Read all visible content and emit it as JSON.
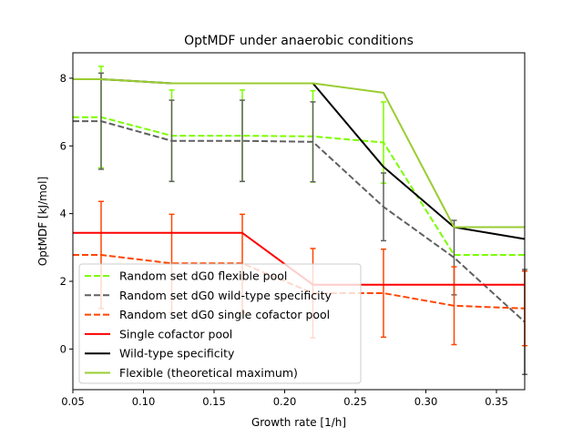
{
  "chart_data": {
    "type": "line",
    "title": "OptMDF under anaerobic conditions",
    "xlabel": "Growth rate [1/h]",
    "ylabel": "OptMDF [kJ/mol]",
    "xlim": [
      0.05,
      0.37
    ],
    "ylim": [
      -1.2,
      8.75
    ],
    "xticks": [
      0.05,
      0.1,
      0.15,
      0.2,
      0.25,
      0.3,
      0.35
    ],
    "xtick_labels": [
      "0.05",
      "0.10",
      "0.15",
      "0.20",
      "0.25",
      "0.30",
      "0.35"
    ],
    "yticks": [
      0,
      2,
      4,
      6,
      8
    ],
    "ytick_labels": [
      "0",
      "2",
      "4",
      "6",
      "8"
    ],
    "grid": false,
    "legend_position": "lower-left",
    "series": [
      {
        "name": "Random set dG0 flexible pool",
        "color": "#7cfc00",
        "dash": "dashed",
        "x": [
          0.05,
          0.07,
          0.12,
          0.17,
          0.22,
          0.27,
          0.32,
          0.37
        ],
        "y": [
          6.85,
          6.85,
          6.3,
          6.3,
          6.28,
          6.1,
          2.78,
          2.78
        ],
        "err": [
          0.0,
          1.5,
          1.35,
          1.35,
          1.35,
          1.2,
          0.0,
          0.0
        ]
      },
      {
        "name": "Random set dG0 wild-type specificity",
        "color": "#606060",
        "dash": "dashed",
        "x": [
          0.05,
          0.07,
          0.12,
          0.17,
          0.22,
          0.27,
          0.32,
          0.37
        ],
        "y": [
          6.73,
          6.73,
          6.15,
          6.15,
          6.12,
          4.2,
          2.7,
          0.8
        ],
        "err": [
          0.0,
          1.42,
          1.2,
          1.2,
          1.18,
          1.0,
          1.1,
          1.55
        ]
      },
      {
        "name": "Random set dG0 single cofactor pool",
        "color": "#ff4500",
        "dash": "dashed",
        "x": [
          0.05,
          0.07,
          0.12,
          0.17,
          0.22,
          0.27,
          0.32,
          0.37
        ],
        "y": [
          2.78,
          2.78,
          2.53,
          2.53,
          1.65,
          1.65,
          1.28,
          1.2
        ],
        "err": [
          0.0,
          1.58,
          1.45,
          1.45,
          1.32,
          1.3,
          1.15,
          1.1
        ]
      },
      {
        "name": "Single cofactor pool",
        "color": "#ff0000",
        "dash": "solid",
        "x": [
          0.05,
          0.07,
          0.12,
          0.17,
          0.22,
          0.27,
          0.32,
          0.37
        ],
        "y": [
          3.43,
          3.43,
          3.43,
          3.43,
          1.9,
          1.9,
          1.9,
          1.9
        ]
      },
      {
        "name": "Wild-type specificity",
        "color": "#000000",
        "dash": "solid",
        "x": [
          0.05,
          0.07,
          0.12,
          0.17,
          0.22,
          0.27,
          0.32,
          0.37
        ],
        "y": [
          7.97,
          7.97,
          7.85,
          7.85,
          7.85,
          5.38,
          3.6,
          3.25
        ]
      },
      {
        "name": "Flexible (theoretical maximum)",
        "color": "#9acd32",
        "dash": "solid",
        "x": [
          0.05,
          0.07,
          0.12,
          0.17,
          0.22,
          0.27,
          0.32,
          0.37
        ],
        "y": [
          7.97,
          7.97,
          7.85,
          7.85,
          7.85,
          7.57,
          3.6,
          3.6
        ]
      }
    ]
  }
}
